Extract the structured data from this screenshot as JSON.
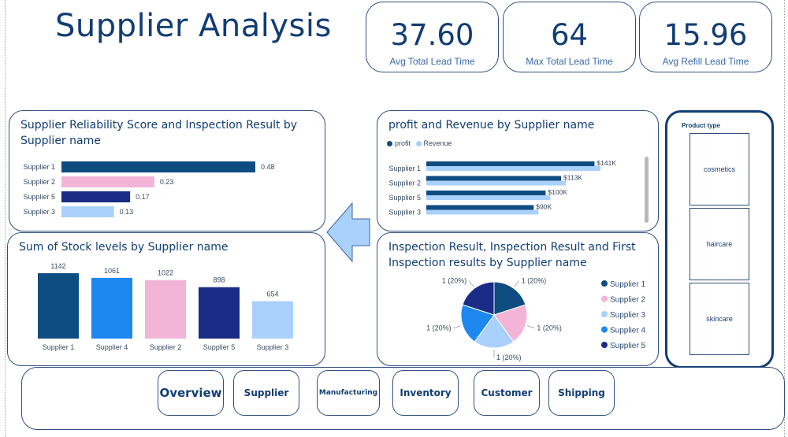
{
  "title": "Supplier Analysis",
  "kpis": [
    {
      "value": "37.60",
      "label": "Avg Total Lead Time"
    },
    {
      "value": "64",
      "label": "Max Total Lead Time"
    },
    {
      "value": "15.96",
      "label": "Avg Refill Lead Time"
    }
  ],
  "colors": {
    "supplier1": "#0f4c81",
    "supplier2": "#f2b5d8",
    "supplier3": "#a9d1fb",
    "supplier4": "#1e88f0",
    "supplier5": "#1a2c86",
    "profit": "#0f4c81",
    "revenue": "#a9d1fb"
  },
  "chart_data": [
    {
      "type": "bar",
      "orientation": "horizontal",
      "title": "Supplier Reliability Score and Inspection Result by Supplier name",
      "categories": [
        "Supplier 1",
        "Supplier 2",
        "Supplier 5",
        "Supplier 3"
      ],
      "values": [
        0.48,
        0.23,
        0.17,
        0.13
      ],
      "value_labels": [
        "0.48",
        "0.23",
        "0.17",
        "0.13"
      ]
    },
    {
      "type": "bar",
      "orientation": "vertical",
      "title": "Sum of Stock levels by Supplier name",
      "categories": [
        "Supplier 1",
        "Supplier 4",
        "Supplier 2",
        "Supplier 5",
        "Supplier 3"
      ],
      "values": [
        1142,
        1061,
        1022,
        898,
        654
      ],
      "value_labels": [
        "1142",
        "1061",
        "1022",
        "898",
        "654"
      ]
    },
    {
      "type": "bar",
      "orientation": "horizontal",
      "title": "profit and Revenue by Supplier name",
      "categories": [
        "Supplier 1",
        "Supplier 2",
        "Supplier 5",
        "Supplier 3"
      ],
      "series": [
        {
          "name": "profit",
          "values": [
            141,
            113,
            100,
            90
          ]
        },
        {
          "name": "Revenue",
          "values": [
            146,
            117,
            104,
            94
          ]
        }
      ],
      "value_labels": [
        "$141K",
        "$113K",
        "$100K",
        "$90K"
      ]
    },
    {
      "type": "pie",
      "title": "Inspection Result, Inspection Result and First Inspection results by Supplier name",
      "categories": [
        "Supplier 1",
        "Supplier 2",
        "Supplier 3",
        "Supplier 4",
        "Supplier 5"
      ],
      "values": [
        1,
        1,
        1,
        1,
        1
      ],
      "slice_labels": [
        "1 (20%)",
        "1 (20%)",
        "1 (20%)",
        "1 (20%)",
        "1 (20%)"
      ]
    }
  ],
  "slicer": {
    "title": "Product type",
    "items": [
      "cosmetics",
      "haircare",
      "skincare"
    ]
  },
  "nav": [
    "Overview",
    "Supplier",
    "Manufacturing",
    "Inventory",
    "Customer",
    "Shipping"
  ]
}
